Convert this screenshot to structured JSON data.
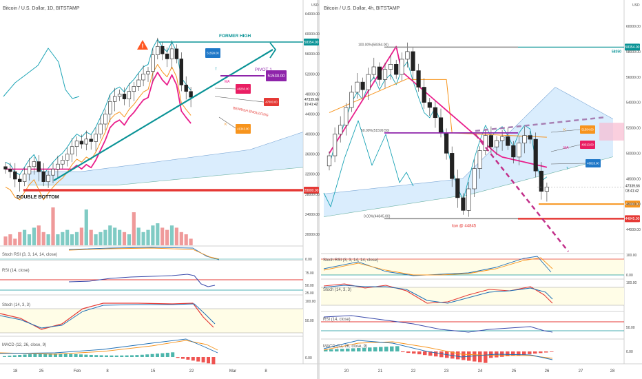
{
  "left_panel": {
    "title": "Bitcoin / U.S. Dollar, 1D, BITSTAMP",
    "currency": "USD",
    "price_ticks": [
      "64000.00",
      "60000.00",
      "56000.00",
      "52000.00",
      "48000.00",
      "44000.00",
      "40000.00",
      "36000.00",
      "32000.00",
      "28000.00",
      "24000.00",
      "20000.00"
    ],
    "date_ticks": [
      "18",
      "25",
      "Feb",
      "8",
      "15",
      "22",
      "Mar",
      "8"
    ],
    "annotations": {
      "former_high": "FORMER HIGH",
      "former_high_price": "58354.00",
      "pivot": "PIVOT 1",
      "pivot_price": "51530.00",
      "double_bottom": "DOUBLE BOTTOM",
      "double_bottom_price": "28800.00",
      "bearish_engulfing": "BEARISH ENGULFING",
      "current_price": "47339.66",
      "countdown": "19:41:42",
      "price_47000": "47000.00",
      "tag_51599": "51599.00",
      "tag_48260": "48260.00",
      "tag_41343": "41343.00",
      "label_ma": "MA",
      "label_t": "T",
      "label_k": "K"
    },
    "indicators": {
      "stoch_rsi": "Stoch RSI (3, 3, 14, 14, close)",
      "rsi": "RSI (14, close)",
      "stoch": "Stoch (14, 3, 3)",
      "macd": "MACD (12, 26, close, 9)"
    },
    "ind_ticks": {
      "stoch_rsi": "0.00",
      "rsi_75": "75.00",
      "rsi_50": "50.00",
      "rsi_25": "25.00",
      "stoch_100": "100.00",
      "stoch_50": "50.00",
      "macd_0": "0.00"
    }
  },
  "right_panel": {
    "title": "Bitcoin / U.S. Dollar, 4h, BITSTAMP",
    "currency": "USD",
    "price_ticks": [
      "60000.00",
      "58000.00",
      "56000.00",
      "54000.00",
      "52000.00",
      "50000.00",
      "48000.00",
      "46000.00",
      "44000.00"
    ],
    "date_ticks": [
      "20",
      "21",
      "22",
      "23",
      "24",
      "25",
      "26",
      "27",
      "28"
    ],
    "annotations": {
      "fib_100": "100.00%(58354.00)",
      "fib_50": "50.00%(51599.50)",
      "fib_0": "0.00%(44845.00)",
      "low": "low @ 44845",
      "price_58354": "58354.00",
      "price_58350": "58350",
      "price_51594": "51594.00",
      "price_49313": "49313.00",
      "price_48028": "48028.00",
      "current_price": "47339.66",
      "countdown": "03:41:42",
      "price_46000": "46000.00",
      "price_44845": "44845.00",
      "label_ma": "MA",
      "label_k": "K",
      "label_t": "T"
    },
    "indicators": {
      "stoch_rsi": "Stoch RSI (3, 3, 14, 14, close)",
      "stoch": "Stoch (14, 3, 3)",
      "rsi": "RSI (14, close)",
      "macd": "MACD (12, 26, close, 9)"
    },
    "ind_ticks": {
      "stoch_rsi_100": "100.00",
      "stoch_rsi_0": "0.00",
      "stoch_100": "100.00",
      "rsi_50": "50.00",
      "macd_0": "0.00"
    }
  },
  "colors": {
    "up": "#26a69a",
    "down": "#222222",
    "pink": "#e91e8c",
    "teal": "#0a9396",
    "orange": "#f7941d",
    "blue": "#1f6fb5",
    "red": "#e53935",
    "purple": "#8e24aa",
    "cloud": "#bbdefb"
  },
  "chart_data": [
    {
      "type": "candlestick",
      "title": "Bitcoin / U.S. Dollar, 1D, BITSTAMP",
      "ylim": [
        18000,
        66000
      ],
      "closes": [
        33000,
        32500,
        31000,
        30500,
        32000,
        33500,
        34500,
        32500,
        30500,
        31800,
        33000,
        34000,
        34800,
        36000,
        37500,
        38600,
        38000,
        39000,
        38500,
        40000,
        42000,
        44000,
        46500,
        47500,
        48000,
        47000,
        48500,
        49500,
        50800,
        52000,
        52500,
        55800,
        57500,
        56000,
        55000,
        57000,
        55000,
        49800,
        48500,
        47339
      ],
      "opens": [
        33500,
        33000,
        32500,
        31000,
        30500,
        32000,
        33500,
        34500,
        32500,
        30500,
        31800,
        33000,
        34000,
        34800,
        36000,
        37500,
        38600,
        38000,
        39000,
        38500,
        40000,
        42000,
        44000,
        46500,
        47500,
        48000,
        47000,
        48500,
        49500,
        50800,
        52000,
        52500,
        55800,
        57500,
        56000,
        55000,
        57000,
        55000,
        49800,
        48500
      ]
    },
    {
      "type": "candlestick",
      "title": "Bitcoin / U.S. Dollar, 4h, BITSTAMP",
      "ylim": [
        42500,
        61000
      ],
      "closes": [
        49800,
        51500,
        52200,
        53600,
        54800,
        55600,
        55000,
        56200,
        56800,
        55800,
        56600,
        57000,
        56200,
        57400,
        58000,
        56500,
        55200,
        54000,
        53600,
        52800,
        51600,
        50000,
        48000,
        46500,
        45500,
        47200,
        48800,
        50200,
        51400,
        50500,
        51000,
        51300,
        50600,
        49700,
        50800,
        51400,
        51100,
        48600,
        47000,
        47339
      ],
      "opens": [
        49000,
        49800,
        51500,
        52200,
        53600,
        54800,
        55600,
        55000,
        56200,
        56800,
        55800,
        56600,
        57000,
        56200,
        57400,
        58000,
        56500,
        55200,
        54000,
        53600,
        52800,
        51600,
        50000,
        48000,
        46500,
        45500,
        47200,
        48800,
        50200,
        51400,
        50500,
        51000,
        51300,
        50600,
        49700,
        50800,
        51400,
        51100,
        48600,
        47000
      ]
    }
  ]
}
